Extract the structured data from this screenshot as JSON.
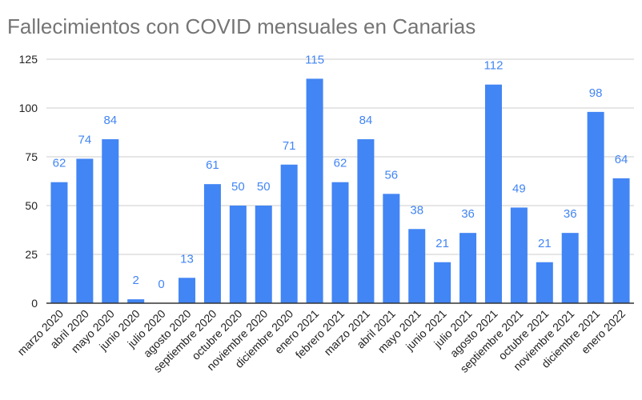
{
  "chart_data": {
    "type": "bar",
    "title": "Fallecimientos con COVID mensuales en Canarias",
    "xlabel": "",
    "ylabel": "",
    "categories": [
      "marzo 2020",
      "abril 2020",
      "mayo 2020",
      "junio 2020",
      "julio 2020",
      "agosto 2020",
      "septiembre 2020",
      "octubre 2020",
      "noviembre 2020",
      "diciembre 2020",
      "enero 2021",
      "febrero 2021",
      "marzo 2021",
      "abril 2021",
      "mayo 2021",
      "junio 2021",
      "julio 2021",
      "agosto 2021",
      "septiembre 2021",
      "octubre 2021",
      "noviembre 2021",
      "diciembre 2021",
      "enero 2022"
    ],
    "values": [
      62,
      74,
      84,
      2,
      0,
      13,
      61,
      50,
      50,
      71,
      115,
      62,
      84,
      56,
      38,
      21,
      36,
      112,
      49,
      21,
      36,
      98,
      64
    ],
    "ylim": [
      0,
      125
    ],
    "yticks": [
      0,
      25,
      50,
      75,
      100,
      125
    ],
    "grid": true,
    "data_labels": true,
    "legend": "none",
    "colors": {
      "bar": "#4285f4",
      "data_label": "#4285f4",
      "title": "#757575",
      "grid": "#cccccc",
      "axis": "#333333",
      "tick_label": "#222222"
    }
  }
}
